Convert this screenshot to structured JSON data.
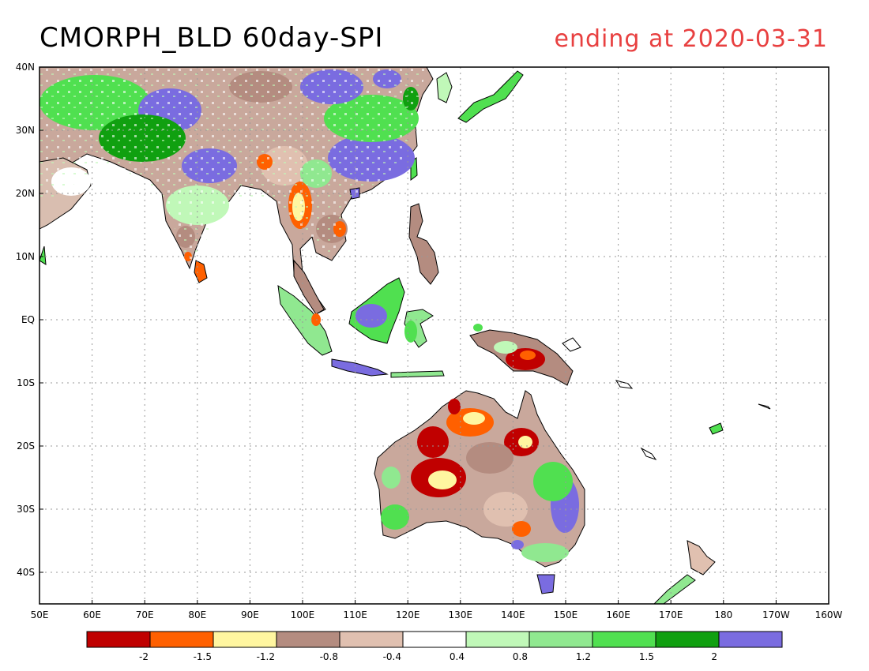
{
  "title": "CMORPH_BLD 60day-SPI",
  "subtitle": "ending at 2020-03-31",
  "colors": {
    "water": "#ffffff",
    "coast": "#000000",
    "grid": "#999999",
    "title_right": "#e84040"
  },
  "axes": {
    "x_tick_labels": [
      "50E",
      "60E",
      "70E",
      "80E",
      "90E",
      "100E",
      "110E",
      "120E",
      "130E",
      "140E",
      "150E",
      "160E",
      "170E",
      "180",
      "170W",
      "160W"
    ],
    "y_tick_labels": [
      "40N",
      "30N",
      "20N",
      "10N",
      "EQ",
      "10S",
      "20S",
      "30S",
      "40S"
    ]
  },
  "legend": {
    "colors": [
      "#c00000",
      "#ff6000",
      "#fff6a0",
      "#b48c80",
      "#e0c0b0",
      "#ffffff",
      "#c0f8b8",
      "#90e890",
      "#50e050",
      "#10a010",
      "#7a6ce0"
    ],
    "labels": [
      "-2",
      "-1.5",
      "-1.2",
      "-0.8",
      "-0.4",
      "0.4",
      "0.8",
      "1.2",
      "1.5",
      "2"
    ]
  }
}
